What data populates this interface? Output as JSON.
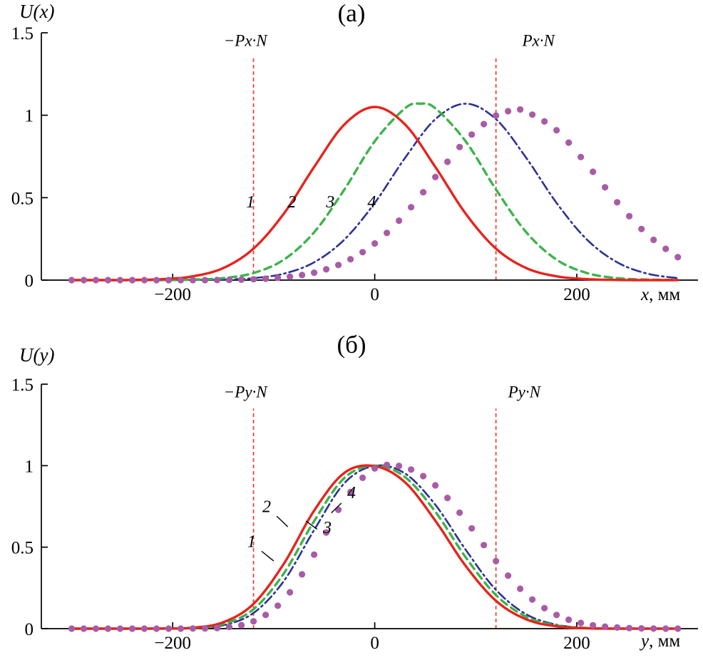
{
  "chart_data": [
    {
      "panel": "a",
      "type": "line",
      "title": "(а)",
      "ylabel": "U(x)",
      "xlabel_var": "x",
      "xlabel_unit": ", мм",
      "xlim": [
        -330,
        320
      ],
      "ylim": [
        0,
        1.5
      ],
      "xticks": [
        -200,
        0,
        200
      ],
      "xtick_labels": [
        "−200",
        "0",
        "200"
      ],
      "yticks": [
        0,
        0.5,
        1,
        1.5
      ],
      "ytick_labels": [
        "0",
        "0.5",
        "1",
        "1.5"
      ],
      "grid": false,
      "legend": "none",
      "vline_label_y": 1.42,
      "vlines": [
        {
          "x": -120,
          "label": "−Px·N",
          "label_x": -128,
          "color": "#f3392b"
        },
        {
          "x": 120,
          "label": "Px·N",
          "label_x": 162,
          "color": "#f3392b"
        }
      ],
      "series": [
        {
          "name": "1",
          "style": "solid",
          "color": "#e8231c",
          "x": [
            -300,
            -270,
            -240,
            -210,
            -180,
            -150,
            -120,
            -90,
            -60,
            -30,
            0,
            30,
            60,
            90,
            120,
            150,
            180,
            210,
            240,
            270,
            300
          ],
          "y": [
            0,
            0,
            0.001,
            0.006,
            0.023,
            0.073,
            0.191,
            0.403,
            0.686,
            0.944,
            1.05,
            0.944,
            0.686,
            0.403,
            0.191,
            0.073,
            0.023,
            0.006,
            0.001,
            0,
            0
          ]
        },
        {
          "name": "2",
          "style": "dashed",
          "color": "#3bb44a",
          "x": [
            -300,
            -270,
            -240,
            -210,
            -180,
            -150,
            -120,
            -90,
            -60,
            -30,
            0,
            30,
            45,
            60,
            90,
            120,
            150,
            180,
            210,
            240,
            270,
            300
          ],
          "y": [
            0,
            0,
            0,
            0,
            0.003,
            0.012,
            0.043,
            0.124,
            0.29,
            0.55,
            0.842,
            1.042,
            1.07,
            1.042,
            0.842,
            0.55,
            0.29,
            0.124,
            0.043,
            0.012,
            0.003,
            0.001
          ]
        },
        {
          "name": "3",
          "style": "dashdot",
          "color": "#2d3192",
          "x": [
            -300,
            -270,
            -240,
            -210,
            -180,
            -150,
            -120,
            -90,
            -60,
            -30,
            0,
            30,
            60,
            90,
            120,
            150,
            180,
            210,
            240,
            270,
            300
          ],
          "y": [
            0,
            0,
            0,
            0,
            0.001,
            0.003,
            0.012,
            0.039,
            0.108,
            0.246,
            0.468,
            0.741,
            0.976,
            1.07,
            0.976,
            0.741,
            0.468,
            0.246,
            0.108,
            0.039,
            0.012
          ]
        },
        {
          "name": "4",
          "style": "dots",
          "color": "#a95ca5",
          "x": [
            -300,
            -270,
            -240,
            -210,
            -180,
            -150,
            -120,
            -90,
            -60,
            -30,
            0,
            30,
            60,
            90,
            120,
            140,
            150,
            180,
            210,
            240,
            270,
            300
          ],
          "y": [
            0,
            0,
            0,
            0,
            0,
            0.001,
            0.005,
            0.017,
            0.045,
            0.108,
            0.222,
            0.4,
            0.625,
            0.847,
            0.998,
            1.03,
            1.022,
            0.909,
            0.702,
            0.472,
            0.275,
            0.139
          ]
        }
      ],
      "curve_labels": [
        {
          "text": "1",
          "x": -123,
          "y": 0.44
        },
        {
          "text": "2",
          "x": -82,
          "y": 0.44
        },
        {
          "text": "3",
          "x": -44,
          "y": 0.44
        },
        {
          "text": "4",
          "x": -3,
          "y": 0.44
        }
      ]
    },
    {
      "panel": "б",
      "type": "line",
      "title": "(б)",
      "ylabel": "U(y)",
      "xlabel_var": "y",
      "xlabel_unit": ", мм",
      "xlim": [
        -330,
        320
      ],
      "ylim": [
        0,
        1.5
      ],
      "xticks": [
        -200,
        0,
        200
      ],
      "xtick_labels": [
        "−200",
        "0",
        "200"
      ],
      "yticks": [
        0,
        0.5,
        1,
        1.5
      ],
      "ytick_labels": [
        "0",
        "0.5",
        "1",
        "1.5"
      ],
      "grid": false,
      "legend": "none",
      "vline_label_y": 1.42,
      "vlines": [
        {
          "x": -120,
          "label": "−Py·N",
          "label_x": -128,
          "color": "#f3392b"
        },
        {
          "x": 120,
          "label": "Py·N",
          "label_x": 148,
          "color": "#f3392b"
        }
      ],
      "series": [
        {
          "name": "1",
          "style": "solid",
          "color": "#e8231c",
          "x": [
            -300,
            -270,
            -240,
            -210,
            -180,
            -150,
            -120,
            -90,
            -60,
            -30,
            0,
            30,
            60,
            90,
            120,
            150,
            180,
            210,
            240,
            270,
            300
          ],
          "y": [
            0,
            0,
            0,
            0.001,
            0.006,
            0.039,
            0.152,
            0.398,
            0.724,
            0.956,
            0.997,
            0.898,
            0.662,
            0.385,
            0.171,
            0.057,
            0.014,
            0.002,
            0,
            0,
            0
          ]
        },
        {
          "name": "2",
          "style": "dashed",
          "color": "#3bb44a",
          "x": [
            -300,
            -270,
            -240,
            -210,
            -180,
            -150,
            -120,
            -90,
            -60,
            -30,
            0,
            30,
            60,
            90,
            120,
            150,
            180,
            210,
            240,
            270,
            300
          ],
          "y": [
            0,
            0,
            0,
            0,
            0.004,
            0.028,
            0.119,
            0.339,
            0.66,
            0.925,
            1.0,
            0.93,
            0.717,
            0.438,
            0.206,
            0.073,
            0.019,
            0.004,
            0.001,
            0,
            0
          ]
        },
        {
          "name": "3",
          "style": "dashdot",
          "color": "#2d3192",
          "x": [
            -300,
            -270,
            -240,
            -210,
            -180,
            -150,
            -120,
            -90,
            -60,
            -30,
            0,
            30,
            60,
            90,
            120,
            150,
            180,
            210,
            240,
            270,
            300
          ],
          "y": [
            0,
            0,
            0,
            0,
            0.003,
            0.021,
            0.096,
            0.292,
            0.605,
            0.893,
            0.999,
            0.952,
            0.76,
            0.484,
            0.238,
            0.088,
            0.024,
            0.005,
            0.001,
            0,
            0
          ]
        },
        {
          "name": "4",
          "style": "dots",
          "color": "#a95ca5",
          "x": [
            -300,
            -270,
            -240,
            -210,
            -180,
            -150,
            -120,
            -90,
            -60,
            -30,
            0,
            30,
            60,
            90,
            120,
            150,
            180,
            210,
            240,
            270,
            300
          ],
          "y": [
            0,
            0,
            0,
            0,
            0.001,
            0.007,
            0.045,
            0.178,
            0.454,
            0.788,
            0.983,
            0.989,
            0.879,
            0.664,
            0.414,
            0.21,
            0.084,
            0.027,
            0.007,
            0.001,
            0
          ]
        }
      ],
      "curve_labels": [
        {
          "text": "1",
          "x": -122,
          "y": 0.5,
          "leader": [
            -112,
            0.475,
            -100,
            0.415
          ]
        },
        {
          "text": "2",
          "x": -107,
          "y": 0.715,
          "leader": [
            -97,
            0.69,
            -86,
            0.625
          ]
        },
        {
          "text": "3",
          "x": -47,
          "y": 0.585,
          "leader": [
            -57,
            0.61,
            -68,
            0.66
          ]
        },
        {
          "text": "4",
          "x": -23,
          "y": 0.8,
          "leader": [
            -33,
            0.77,
            -43,
            0.71
          ]
        }
      ]
    }
  ],
  "colors": {
    "curve1": "#e8231c",
    "curve2": "#3bb44a",
    "curve3": "#2d3192",
    "curve4": "#a95ca5",
    "vline": "#f3392b",
    "axis": "#000000"
  }
}
